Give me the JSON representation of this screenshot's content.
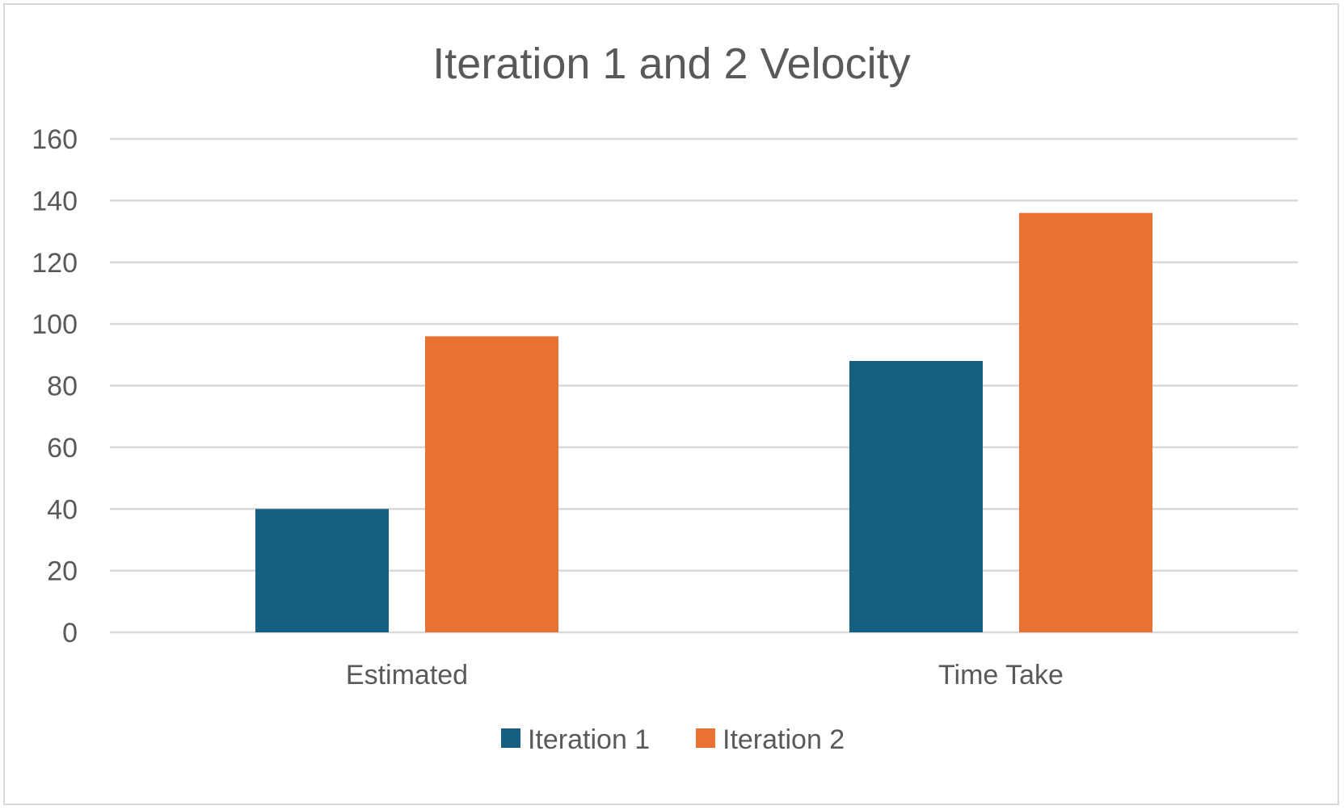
{
  "chart_data": {
    "type": "bar",
    "title": "Iteration 1 and 2 Velocity",
    "categories": [
      "Estimated",
      "Time Take"
    ],
    "series": [
      {
        "name": "Iteration 1",
        "values": [
          40,
          88
        ],
        "color": "#156082"
      },
      {
        "name": "Iteration 2",
        "values": [
          96,
          136
        ],
        "color": "#E97132"
      }
    ],
    "ylim": [
      0,
      160
    ],
    "yticks": [
      0,
      20,
      40,
      60,
      80,
      100,
      120,
      140,
      160
    ],
    "grid": true,
    "legend_position": "bottom",
    "gridline_color": "#D9D9D9"
  }
}
